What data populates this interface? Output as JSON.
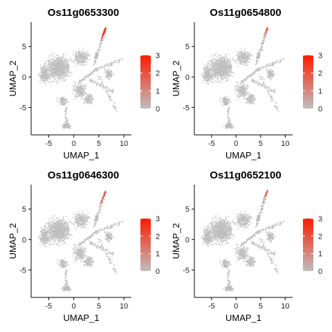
{
  "figure": {
    "type": "feature-plot-grid",
    "colors": {
      "low": "#bebebe",
      "high": "#ff1a00",
      "axis": "#000000",
      "background": "#ffffff"
    }
  },
  "chart_data": [
    {
      "type": "scatter",
      "title": "Os11g0653300",
      "xlabel": "UMAP_1",
      "ylabel": "UMAP_2",
      "xlim": [
        -8.5,
        11.5
      ],
      "ylim": [
        -9.5,
        9
      ],
      "xticks": [
        -5,
        0,
        5,
        10
      ],
      "yticks": [
        -5,
        0,
        5
      ],
      "legend": {
        "position": "right",
        "min": 0,
        "max": 3,
        "ticks": [
          0,
          1,
          2,
          3
        ]
      },
      "expressing_cells": [
        [
          5.6,
          6.3,
          1.5
        ],
        [
          5.7,
          6.6,
          2.0
        ],
        [
          5.8,
          6.9,
          2.5
        ],
        [
          5.9,
          7.1,
          2.9
        ],
        [
          6.0,
          7.3,
          2.6
        ],
        [
          6.1,
          7.5,
          3.0
        ],
        [
          6.2,
          7.7,
          2.8
        ],
        [
          6.3,
          7.9,
          3.0
        ],
        [
          6.4,
          8.0,
          2.2
        ],
        [
          5.5,
          6.0,
          1.0
        ],
        [
          6.0,
          7.0,
          1.8
        ],
        [
          6.2,
          7.4,
          2.4
        ]
      ]
    },
    {
      "type": "scatter",
      "title": "Os11g0654800",
      "xlabel": "UMAP_1",
      "ylabel": "UMAP_2",
      "xlim": [
        -8.5,
        11.5
      ],
      "ylim": [
        -9.5,
        9
      ],
      "xticks": [
        -5,
        0,
        5,
        10
      ],
      "yticks": [
        -5,
        0,
        5
      ],
      "legend": {
        "position": "right",
        "min": 0,
        "max": 3,
        "ticks": [
          0,
          1,
          2,
          3
        ]
      },
      "expressing_cells": [
        [
          5.8,
          6.9,
          1.2
        ],
        [
          6.0,
          7.3,
          1.6
        ],
        [
          6.2,
          7.6,
          2.2
        ],
        [
          6.3,
          7.9,
          2.8
        ],
        [
          6.4,
          8.0,
          1.8
        ],
        [
          5.7,
          6.5,
          0.8
        ],
        [
          6.1,
          7.4,
          1.0
        ],
        [
          5.5,
          5.6,
          0.7
        ],
        [
          5.2,
          4.5,
          0.6
        ]
      ]
    },
    {
      "type": "scatter",
      "title": "Os11g0646300",
      "xlabel": "UMAP_1",
      "ylabel": "UMAP_2",
      "xlim": [
        -8.5,
        11.5
      ],
      "ylim": [
        -9.5,
        9
      ],
      "xticks": [
        -5,
        0,
        5,
        10
      ],
      "yticks": [
        -5,
        0,
        5
      ],
      "legend": {
        "position": "right",
        "min": 0,
        "max": 3,
        "ticks": [
          0,
          1,
          2,
          3
        ]
      },
      "expressing_cells": [
        [
          5.4,
          6.0,
          1.4
        ],
        [
          5.6,
          6.4,
          1.8
        ],
        [
          5.8,
          6.8,
          2.3
        ],
        [
          6.0,
          7.1,
          2.0
        ],
        [
          6.1,
          7.4,
          2.6
        ],
        [
          6.2,
          7.6,
          1.6
        ],
        [
          6.3,
          7.8,
          2.2
        ],
        [
          5.7,
          6.6,
          1.0
        ],
        [
          5.5,
          6.2,
          0.9
        ],
        [
          6.0,
          7.2,
          1.2
        ]
      ]
    },
    {
      "type": "scatter",
      "title": "Os11g0652100",
      "xlabel": "UMAP_1",
      "ylabel": "UMAP_2",
      "xlim": [
        -8.5,
        11.5
      ],
      "ylim": [
        -9.5,
        9
      ],
      "xticks": [
        -5,
        0,
        5,
        10
      ],
      "yticks": [
        -5,
        0,
        5
      ],
      "legend": {
        "position": "right",
        "min": 0,
        "max": 3,
        "ticks": [
          0,
          1,
          2,
          3
        ]
      },
      "expressing_cells": [
        [
          5.7,
          6.7,
          1.0
        ],
        [
          5.9,
          7.1,
          1.4
        ],
        [
          6.1,
          7.5,
          2.2
        ],
        [
          6.3,
          7.8,
          1.8
        ],
        [
          6.4,
          8.0,
          1.2
        ],
        [
          5.6,
          6.2,
          0.8
        ],
        [
          6.0,
          7.3,
          0.9
        ],
        [
          5.3,
          5.0,
          0.6
        ]
      ]
    }
  ]
}
